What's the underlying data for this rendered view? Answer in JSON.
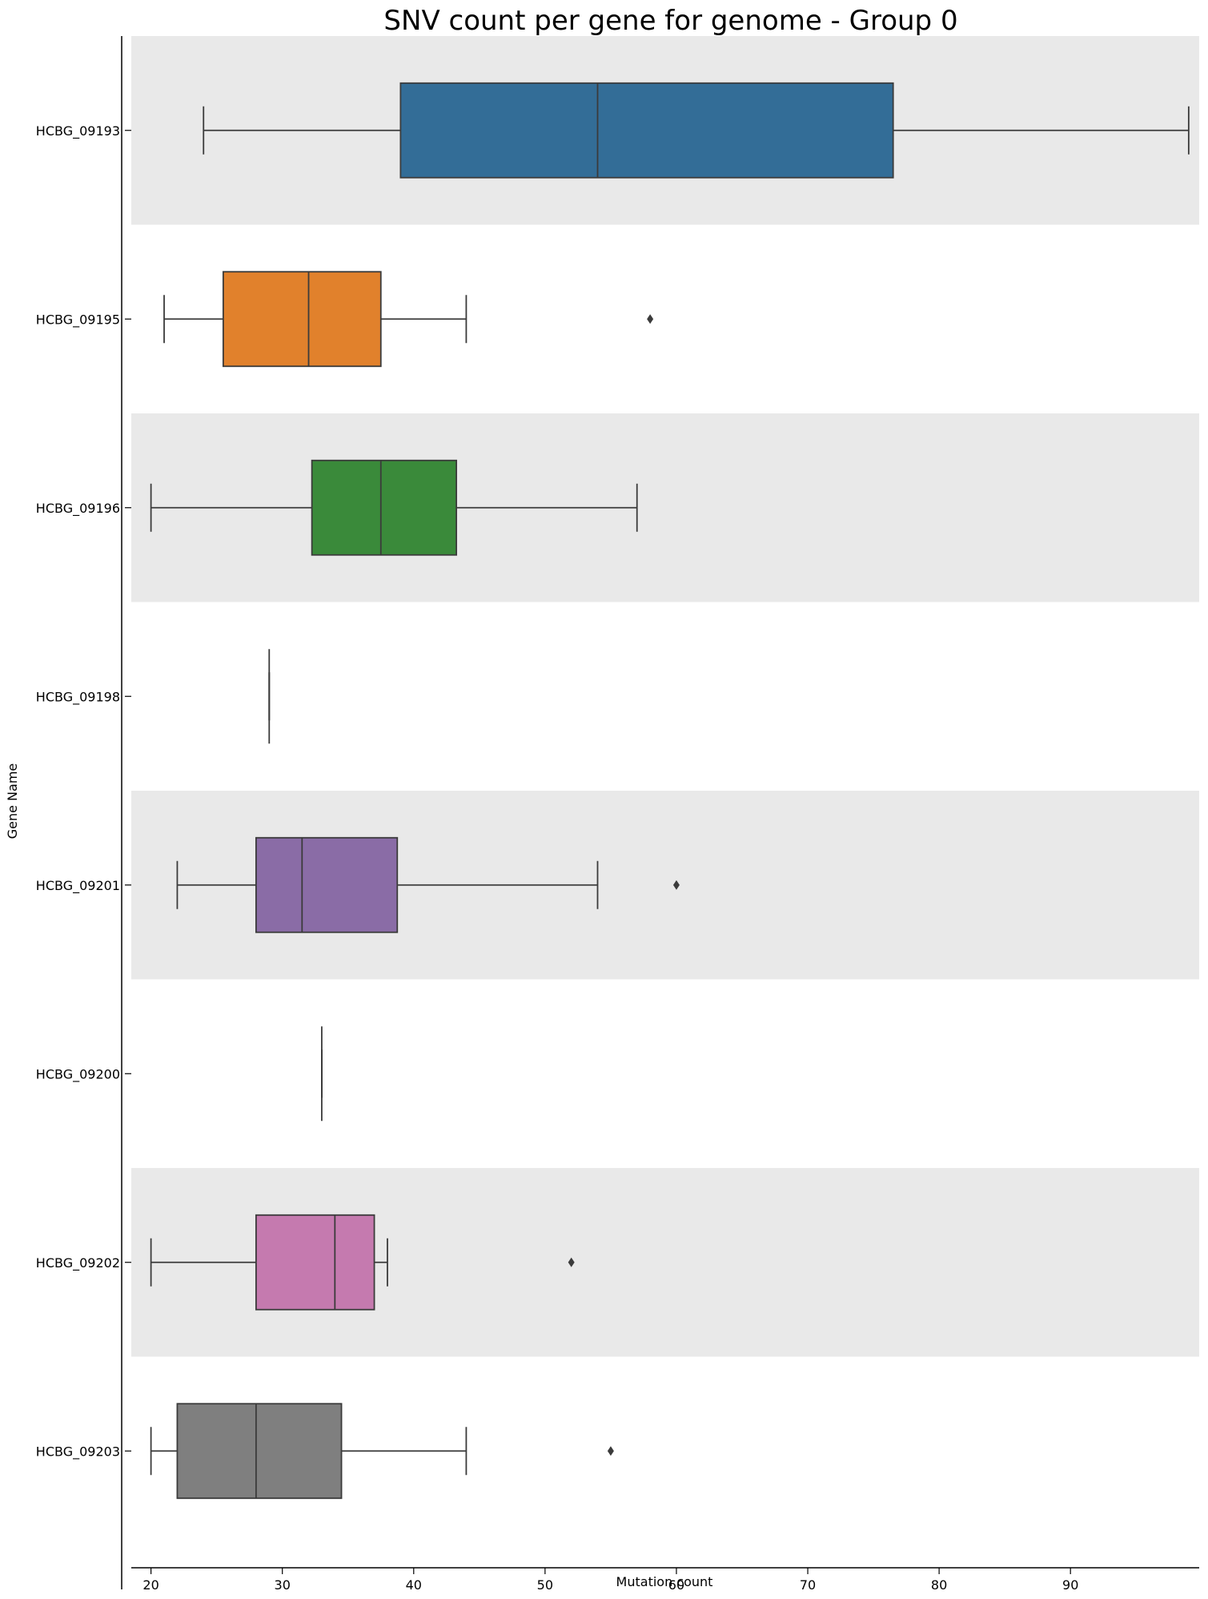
{
  "chart_data": {
    "type": "box",
    "title": "SNV count per gene for genome - Group 0",
    "xlabel": "Mutation count",
    "ylabel": "Gene Name",
    "xlim": [
      18.5,
      99.8
    ],
    "xticks": [
      20,
      30,
      40,
      50,
      60,
      70,
      80,
      90
    ],
    "orientation": "horizontal",
    "band_color": "#e9e9e9",
    "series": [
      {
        "name": "HCBG_09193",
        "color": "#336d97",
        "whisker_low": 24,
        "q1": 39,
        "median": 54,
        "q3": 76.5,
        "whisker_high": 99,
        "outliers": []
      },
      {
        "name": "HCBG_09195",
        "color": "#e1812c",
        "whisker_low": 21,
        "q1": 25.5,
        "median": 32,
        "q3": 37.5,
        "whisker_high": 44,
        "outliers": [
          58
        ]
      },
      {
        "name": "HCBG_09196",
        "color": "#3a8a3a",
        "whisker_low": 20,
        "q1": 32.25,
        "median": 37.5,
        "q3": 43.25,
        "whisker_high": 57,
        "outliers": []
      },
      {
        "name": "HCBG_09198",
        "color": "#c03d3e",
        "whisker_low": 29,
        "q1": 29,
        "median": 29,
        "q3": 29,
        "whisker_high": 29,
        "outliers": []
      },
      {
        "name": "HCBG_09201",
        "color": "#8a6ca6",
        "whisker_low": 22,
        "q1": 28,
        "median": 31.5,
        "q3": 38.75,
        "whisker_high": 54,
        "outliers": [
          60
        ]
      },
      {
        "name": "HCBG_09200",
        "color": "#845b53",
        "whisker_low": 33,
        "q1": 33,
        "median": 33,
        "q3": 33,
        "whisker_high": 33,
        "outliers": []
      },
      {
        "name": "HCBG_09202",
        "color": "#c57aaf",
        "whisker_low": 20,
        "q1": 28,
        "median": 34,
        "q3": 37,
        "whisker_high": 38,
        "outliers": [
          52
        ]
      },
      {
        "name": "HCBG_09203",
        "color": "#7f7f7f",
        "whisker_low": 20,
        "q1": 22,
        "median": 28,
        "q3": 34.5,
        "whisker_high": 44,
        "outliers": [
          55
        ]
      }
    ]
  }
}
